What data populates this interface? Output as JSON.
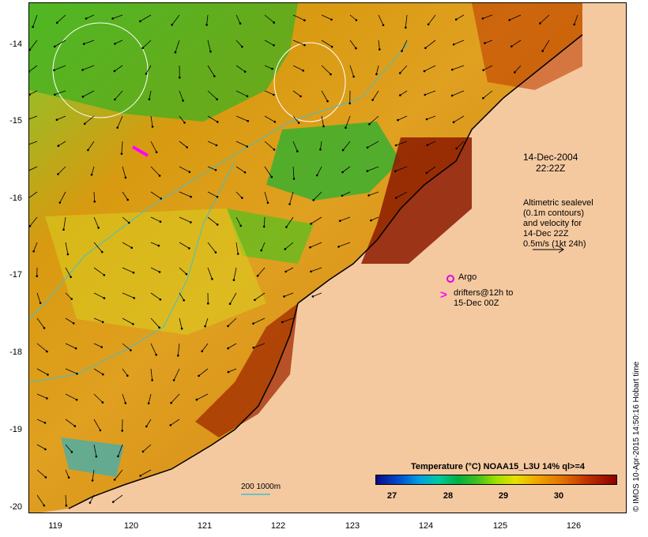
{
  "map": {
    "lon_ticks": [
      "119",
      "120",
      "121",
      "122",
      "123",
      "124",
      "125",
      "126"
    ],
    "lat_ticks": [
      "-14",
      "-15",
      "-16",
      "-17",
      "-18",
      "-19",
      "-20"
    ],
    "lon_range": [
      118.65,
      126.7
    ],
    "lat_range": [
      -20.05,
      -13.65
    ]
  },
  "annotations": {
    "date": "14-Dec-2004",
    "time": "22:22Z",
    "altimetric_line1": "Altimetric sealevel",
    "altimetric_line2": "(0.1m contours)",
    "altimetric_line3": "and velocity for",
    "altimetric_line4": "14-Dec 22Z",
    "velocity_scale": "0.5m/s (1kt 24h)",
    "argo_label": "Argo",
    "drifters_line1": "drifters@12h to",
    "drifters_line2": "15-Dec 00Z",
    "bathy_scale": "200  1000m"
  },
  "colorbar": {
    "title": "Temperature (°C) NOAA15_L3U 14% ql>=4",
    "ticks": [
      "27",
      "28",
      "29",
      "30"
    ]
  },
  "credit": "© IMOS 10-Apr-2015 14:50:16 Hobart time",
  "colors": {
    "land": "#f5c9a0",
    "argo": "#e000e0",
    "drifter": "#ff00ff",
    "contour": "#ffffff",
    "isobath": "#40c0d0"
  }
}
